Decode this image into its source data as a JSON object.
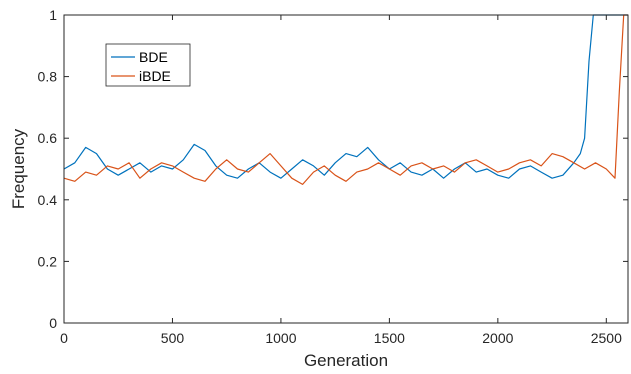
{
  "chart_data": {
    "type": "line",
    "title": "",
    "xlabel": "Generation",
    "ylabel": "Frequency",
    "xlim": [
      0,
      2600
    ],
    "ylim": [
      0,
      1
    ],
    "xticks": [
      0,
      500,
      1000,
      1500,
      2000,
      2500
    ],
    "yticks": [
      0,
      0.2,
      0.4,
      0.6,
      0.8,
      1
    ],
    "ytick_labels": [
      "0",
      "0.2",
      "0.4",
      "0.6",
      "0.8",
      "1"
    ],
    "grid": false,
    "legend_position": "top-left",
    "series": [
      {
        "name": "BDE",
        "color": "#0072BD",
        "points": [
          [
            0,
            0.5
          ],
          [
            50,
            0.52
          ],
          [
            100,
            0.57
          ],
          [
            150,
            0.55
          ],
          [
            200,
            0.5
          ],
          [
            250,
            0.48
          ],
          [
            300,
            0.5
          ],
          [
            350,
            0.52
          ],
          [
            400,
            0.49
          ],
          [
            450,
            0.51
          ],
          [
            500,
            0.5
          ],
          [
            550,
            0.53
          ],
          [
            600,
            0.58
          ],
          [
            650,
            0.56
          ],
          [
            700,
            0.51
          ],
          [
            750,
            0.48
          ],
          [
            800,
            0.47
          ],
          [
            850,
            0.5
          ],
          [
            900,
            0.52
          ],
          [
            950,
            0.49
          ],
          [
            1000,
            0.47
          ],
          [
            1050,
            0.5
          ],
          [
            1100,
            0.53
          ],
          [
            1150,
            0.51
          ],
          [
            1200,
            0.48
          ],
          [
            1250,
            0.52
          ],
          [
            1300,
            0.55
          ],
          [
            1350,
            0.54
          ],
          [
            1400,
            0.57
          ],
          [
            1450,
            0.53
          ],
          [
            1500,
            0.5
          ],
          [
            1550,
            0.52
          ],
          [
            1600,
            0.49
          ],
          [
            1650,
            0.48
          ],
          [
            1700,
            0.5
          ],
          [
            1750,
            0.47
          ],
          [
            1800,
            0.5
          ],
          [
            1850,
            0.52
          ],
          [
            1900,
            0.49
          ],
          [
            1950,
            0.5
          ],
          [
            2000,
            0.48
          ],
          [
            2050,
            0.47
          ],
          [
            2100,
            0.5
          ],
          [
            2150,
            0.51
          ],
          [
            2200,
            0.49
          ],
          [
            2250,
            0.47
          ],
          [
            2300,
            0.48
          ],
          [
            2350,
            0.52
          ],
          [
            2380,
            0.55
          ],
          [
            2400,
            0.6
          ],
          [
            2420,
            0.85
          ],
          [
            2440,
            1.0
          ],
          [
            2600,
            1.0
          ]
        ]
      },
      {
        "name": "iBDE",
        "color": "#D95319",
        "points": [
          [
            0,
            0.47
          ],
          [
            50,
            0.46
          ],
          [
            100,
            0.49
          ],
          [
            150,
            0.48
          ],
          [
            200,
            0.51
          ],
          [
            250,
            0.5
          ],
          [
            300,
            0.52
          ],
          [
            350,
            0.47
          ],
          [
            400,
            0.5
          ],
          [
            450,
            0.52
          ],
          [
            500,
            0.51
          ],
          [
            550,
            0.49
          ],
          [
            600,
            0.47
          ],
          [
            650,
            0.46
          ],
          [
            700,
            0.5
          ],
          [
            750,
            0.53
          ],
          [
            800,
            0.5
          ],
          [
            850,
            0.49
          ],
          [
            900,
            0.52
          ],
          [
            950,
            0.55
          ],
          [
            1000,
            0.51
          ],
          [
            1050,
            0.47
          ],
          [
            1100,
            0.45
          ],
          [
            1150,
            0.49
          ],
          [
            1200,
            0.51
          ],
          [
            1250,
            0.48
          ],
          [
            1300,
            0.46
          ],
          [
            1350,
            0.49
          ],
          [
            1400,
            0.5
          ],
          [
            1450,
            0.52
          ],
          [
            1500,
            0.5
          ],
          [
            1550,
            0.48
          ],
          [
            1600,
            0.51
          ],
          [
            1650,
            0.52
          ],
          [
            1700,
            0.5
          ],
          [
            1750,
            0.51
          ],
          [
            1800,
            0.49
          ],
          [
            1850,
            0.52
          ],
          [
            1900,
            0.53
          ],
          [
            1950,
            0.51
          ],
          [
            2000,
            0.49
          ],
          [
            2050,
            0.5
          ],
          [
            2100,
            0.52
          ],
          [
            2150,
            0.53
          ],
          [
            2200,
            0.51
          ],
          [
            2250,
            0.55
          ],
          [
            2300,
            0.54
          ],
          [
            2350,
            0.52
          ],
          [
            2400,
            0.5
          ],
          [
            2450,
            0.52
          ],
          [
            2500,
            0.5
          ],
          [
            2540,
            0.47
          ],
          [
            2560,
            0.75
          ],
          [
            2580,
            1.0
          ],
          [
            2600,
            1.0
          ]
        ]
      }
    ]
  }
}
